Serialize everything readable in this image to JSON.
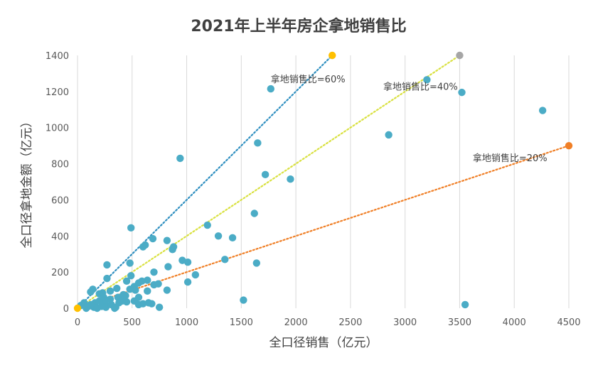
{
  "chart_data": {
    "type": "scatter",
    "title": "2021年上半年房企拿地销售比",
    "xlabel": "全口径销售（亿元）",
    "ylabel": "全口径拿地金额（亿元）",
    "xlim": [
      0,
      4500
    ],
    "ylim": [
      0,
      1400
    ],
    "xticks": [
      0,
      500,
      1000,
      1500,
      2000,
      2500,
      3000,
      3500,
      4000,
      4500
    ],
    "yticks": [
      0,
      200,
      400,
      600,
      800,
      1000,
      1200,
      1400
    ],
    "grid": "vertical",
    "colors": {
      "points": "#4BACC6",
      "line_60": "#2E8FC0",
      "line_40": "#D9E140",
      "line_20": "#F07F26",
      "end_60": "#FFC000",
      "end_40": "#A6A6A6",
      "end_20": "#F07F26",
      "grid": "#D9D9D9"
    },
    "reference_lines": [
      {
        "label": "拿地销售比=60%",
        "ratio": 0.6,
        "x_end": 2333,
        "y_end": 1400,
        "color_key": "line_60",
        "end_color_key": "end_60",
        "label_x": 1770,
        "label_y": 1250
      },
      {
        "label": "拿地销售比=40%",
        "ratio": 0.4,
        "x_end": 3500,
        "y_end": 1400,
        "color_key": "line_40",
        "end_color_key": "end_40",
        "label_x": 2800,
        "label_y": 1210
      },
      {
        "label": "拿地销售比=20%",
        "ratio": 0.2,
        "x_end": 4500,
        "y_end": 900,
        "color_key": "line_20",
        "end_color_key": "end_20",
        "label_x": 3620,
        "label_y": 815
      }
    ],
    "origin_point": {
      "x": 0,
      "y": 0
    },
    "points": [
      [
        940,
        830
      ],
      [
        490,
        445
      ],
      [
        1190,
        460
      ],
      [
        1290,
        400
      ],
      [
        1420,
        390
      ],
      [
        1350,
        270
      ],
      [
        1640,
        250
      ],
      [
        1520,
        45
      ],
      [
        1620,
        525
      ],
      [
        1720,
        740
      ],
      [
        1650,
        915
      ],
      [
        1950,
        715
      ],
      [
        1770,
        1215
      ],
      [
        2850,
        960
      ],
      [
        3200,
        1265
      ],
      [
        3520,
        1195
      ],
      [
        4260,
        1095
      ],
      [
        3550,
        20
      ],
      [
        270,
        240
      ],
      [
        270,
        165
      ],
      [
        480,
        250
      ],
      [
        490,
        180
      ],
      [
        450,
        150
      ],
      [
        520,
        120
      ],
      [
        600,
        340
      ],
      [
        620,
        350
      ],
      [
        690,
        385
      ],
      [
        820,
        375
      ],
      [
        870,
        325
      ],
      [
        880,
        340
      ],
      [
        960,
        265
      ],
      [
        1010,
        255
      ],
      [
        830,
        230
      ],
      [
        700,
        200
      ],
      [
        640,
        155
      ],
      [
        590,
        150
      ],
      [
        560,
        140
      ],
      [
        700,
        130
      ],
      [
        740,
        135
      ],
      [
        820,
        100
      ],
      [
        1080,
        185
      ],
      [
        1010,
        145
      ],
      [
        640,
        95
      ],
      [
        530,
        100
      ],
      [
        480,
        105
      ],
      [
        360,
        110
      ],
      [
        300,
        95
      ],
      [
        140,
        105
      ],
      [
        120,
        90
      ],
      [
        200,
        80
      ],
      [
        230,
        85
      ],
      [
        420,
        75
      ],
      [
        370,
        60
      ],
      [
        300,
        50
      ],
      [
        250,
        30
      ],
      [
        160,
        30
      ],
      [
        60,
        30
      ],
      [
        30,
        15
      ],
      [
        100,
        10
      ],
      [
        150,
        5
      ],
      [
        180,
        0
      ],
      [
        220,
        10
      ],
      [
        260,
        5
      ],
      [
        310,
        20
      ],
      [
        350,
        5
      ],
      [
        380,
        30
      ],
      [
        410,
        40
      ],
      [
        450,
        35
      ],
      [
        520,
        40
      ],
      [
        560,
        20
      ],
      [
        600,
        25
      ],
      [
        650,
        30
      ],
      [
        680,
        25
      ],
      [
        750,
        5
      ],
      [
        80,
        0
      ],
      [
        200,
        40
      ],
      [
        340,
        0
      ],
      [
        120,
        20
      ],
      [
        440,
        70
      ],
      [
        560,
        60
      ],
      [
        240,
        60
      ]
    ]
  }
}
